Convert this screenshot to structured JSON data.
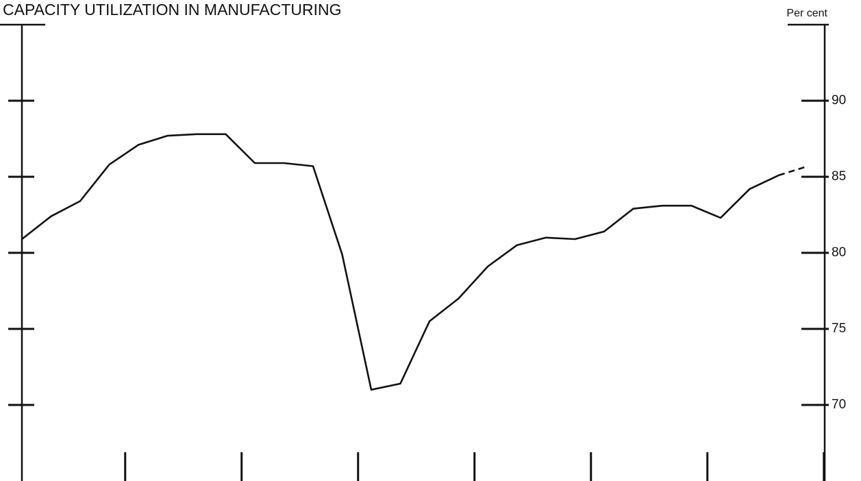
{
  "chart_data": {
    "type": "line",
    "title": "CAPACITY UTILIZATION IN MANUFACTURING",
    "y_axis_label": "Per cent",
    "categories": [
      null,
      null,
      null,
      null,
      null,
      null,
      null,
      null,
      null,
      null,
      null,
      null,
      null,
      null,
      null,
      null,
      null,
      null,
      null,
      null,
      null,
      null,
      null,
      null,
      null,
      null,
      null,
      null
    ],
    "series": [
      {
        "color": "#111111",
        "dashed": false,
        "values": [
          80.9,
          82.4,
          83.4,
          85.8,
          87.1,
          87.7,
          87.8,
          87.8,
          85.9,
          85.9,
          85.7,
          79.9,
          71.0,
          71.4,
          75.5,
          77.0,
          79.1,
          80.5,
          81.0,
          80.9,
          81.4,
          82.9,
          83.1,
          83.1,
          82.3,
          84.2,
          85.1,
          null
        ]
      },
      {
        "color": "#111111",
        "dashed": true,
        "values": [
          null,
          null,
          null,
          null,
          null,
          null,
          null,
          null,
          null,
          null,
          null,
          null,
          null,
          null,
          null,
          null,
          null,
          null,
          null,
          null,
          null,
          null,
          null,
          null,
          null,
          null,
          85.1,
          85.7
        ]
      }
    ],
    "ylim": [
      65,
      95
    ],
    "yticks": [
      70,
      75,
      80,
      85,
      90
    ],
    "y_axis_side": "right",
    "grid": false
  }
}
